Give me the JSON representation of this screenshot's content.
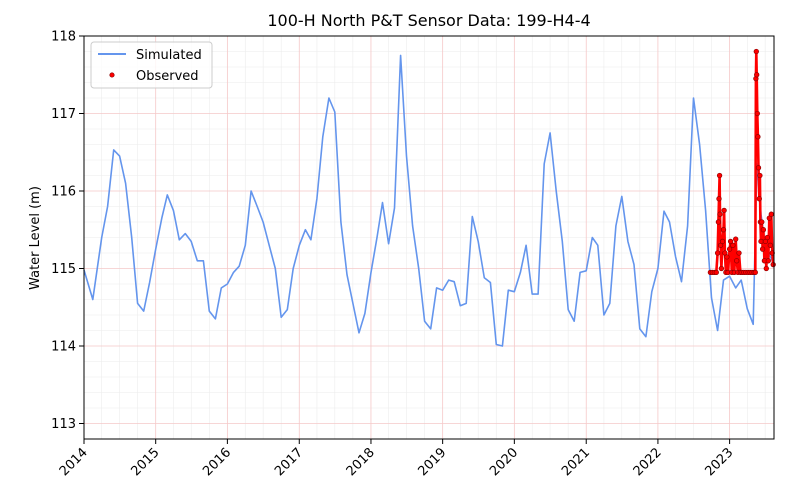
{
  "chart_data": {
    "type": "line",
    "title": "100-H North P&T Sensor Data: 199-H4-4",
    "xlabel": "",
    "ylabel": "Water Level (m)",
    "xlim": [
      "2014-01-01",
      "2023-08-15"
    ],
    "ylim": [
      112.8,
      118.0
    ],
    "x_ticks": [
      "2014",
      "2015",
      "2016",
      "2017",
      "2018",
      "2019",
      "2020",
      "2021",
      "2022",
      "2023"
    ],
    "y_ticks": [
      113,
      114,
      115,
      116,
      117,
      118
    ],
    "grid": true,
    "legend_position": "top-left",
    "series": [
      {
        "name": "Simulated",
        "style": "line",
        "color": "#6495ed",
        "points": [
          [
            "2014-01-01",
            114.98
          ],
          [
            "2014-02-15",
            114.6
          ],
          [
            "2014-04-01",
            115.4
          ],
          [
            "2014-05-01",
            115.8
          ],
          [
            "2014-06-01",
            116.53
          ],
          [
            "2014-07-01",
            116.45
          ],
          [
            "2014-08-01",
            116.1
          ],
          [
            "2014-09-01",
            115.4
          ],
          [
            "2014-10-01",
            114.55
          ],
          [
            "2014-11-01",
            114.45
          ],
          [
            "2014-12-01",
            114.82
          ],
          [
            "2015-01-01",
            115.25
          ],
          [
            "2015-02-01",
            115.65
          ],
          [
            "2015-03-01",
            115.95
          ],
          [
            "2015-04-01",
            115.75
          ],
          [
            "2015-05-01",
            115.37
          ],
          [
            "2015-06-01",
            115.45
          ],
          [
            "2015-07-01",
            115.35
          ],
          [
            "2015-08-01",
            115.1
          ],
          [
            "2015-09-01",
            115.1
          ],
          [
            "2015-10-01",
            114.45
          ],
          [
            "2015-11-01",
            114.35
          ],
          [
            "2015-12-01",
            114.75
          ],
          [
            "2016-01-01",
            114.8
          ],
          [
            "2016-02-01",
            114.95
          ],
          [
            "2016-03-01",
            115.03
          ],
          [
            "2016-04-01",
            115.3
          ],
          [
            "2016-05-01",
            116.0
          ],
          [
            "2016-06-01",
            115.8
          ],
          [
            "2016-07-01",
            115.6
          ],
          [
            "2016-08-01",
            115.3
          ],
          [
            "2016-09-01",
            115.0
          ],
          [
            "2016-10-01",
            114.37
          ],
          [
            "2016-11-01",
            114.47
          ],
          [
            "2016-12-01",
            115.0
          ],
          [
            "2017-01-01",
            115.3
          ],
          [
            "2017-02-01",
            115.5
          ],
          [
            "2017-03-01",
            115.37
          ],
          [
            "2017-04-01",
            115.9
          ],
          [
            "2017-05-01",
            116.7
          ],
          [
            "2017-06-01",
            117.2
          ],
          [
            "2017-07-01",
            117.02
          ],
          [
            "2017-08-01",
            115.6
          ],
          [
            "2017-09-01",
            114.92
          ],
          [
            "2017-10-01",
            114.55
          ],
          [
            "2017-11-01",
            114.17
          ],
          [
            "2017-12-01",
            114.42
          ],
          [
            "2018-01-01",
            114.95
          ],
          [
            "2018-02-01",
            115.4
          ],
          [
            "2018-03-01",
            115.85
          ],
          [
            "2018-04-01",
            115.32
          ],
          [
            "2018-05-01",
            115.78
          ],
          [
            "2018-06-01",
            117.75
          ],
          [
            "2018-07-01",
            116.45
          ],
          [
            "2018-08-01",
            115.55
          ],
          [
            "2018-09-01",
            115.0
          ],
          [
            "2018-10-01",
            114.32
          ],
          [
            "2018-11-01",
            114.22
          ],
          [
            "2018-12-01",
            114.75
          ],
          [
            "2019-01-01",
            114.72
          ],
          [
            "2019-02-01",
            114.85
          ],
          [
            "2019-03-01",
            114.83
          ],
          [
            "2019-04-01",
            114.52
          ],
          [
            "2019-05-01",
            114.55
          ],
          [
            "2019-06-01",
            115.67
          ],
          [
            "2019-07-01",
            115.35
          ],
          [
            "2019-08-01",
            114.88
          ],
          [
            "2019-09-01",
            114.82
          ],
          [
            "2019-10-01",
            114.02
          ],
          [
            "2019-11-01",
            114.0
          ],
          [
            "2019-12-01",
            114.72
          ],
          [
            "2020-01-01",
            114.7
          ],
          [
            "2020-02-01",
            114.95
          ],
          [
            "2020-03-01",
            115.3
          ],
          [
            "2020-04-01",
            114.67
          ],
          [
            "2020-05-01",
            114.67
          ],
          [
            "2020-06-01",
            116.35
          ],
          [
            "2020-07-01",
            116.75
          ],
          [
            "2020-08-01",
            116.0
          ],
          [
            "2020-09-01",
            115.35
          ],
          [
            "2020-10-01",
            114.47
          ],
          [
            "2020-11-01",
            114.32
          ],
          [
            "2020-12-01",
            114.95
          ],
          [
            "2021-01-01",
            114.97
          ],
          [
            "2021-02-01",
            115.4
          ],
          [
            "2021-03-01",
            115.3
          ],
          [
            "2021-04-01",
            114.4
          ],
          [
            "2021-05-01",
            114.55
          ],
          [
            "2021-06-01",
            115.55
          ],
          [
            "2021-07-01",
            115.93
          ],
          [
            "2021-08-01",
            115.35
          ],
          [
            "2021-09-01",
            115.05
          ],
          [
            "2021-10-01",
            114.22
          ],
          [
            "2021-11-01",
            114.12
          ],
          [
            "2021-12-01",
            114.7
          ],
          [
            "2022-01-01",
            115.0
          ],
          [
            "2022-02-01",
            115.74
          ],
          [
            "2022-03-01",
            115.6
          ],
          [
            "2022-04-01",
            115.15
          ],
          [
            "2022-05-01",
            114.83
          ],
          [
            "2022-06-01",
            115.55
          ],
          [
            "2022-07-01",
            117.2
          ],
          [
            "2022-08-01",
            116.6
          ],
          [
            "2022-09-01",
            115.75
          ],
          [
            "2022-10-01",
            114.62
          ],
          [
            "2022-11-01",
            114.2
          ],
          [
            "2022-12-01",
            114.85
          ],
          [
            "2023-01-01",
            114.9
          ],
          [
            "2023-02-01",
            114.75
          ],
          [
            "2023-03-01",
            114.85
          ],
          [
            "2023-04-01",
            114.48
          ],
          [
            "2023-05-01",
            114.28
          ],
          [
            "2023-05-20",
            116.35
          ],
          [
            "2023-06-10",
            115.7
          ],
          [
            "2023-07-01",
            115.3
          ],
          [
            "2023-08-15",
            115.05
          ]
        ]
      },
      {
        "name": "Observed",
        "style": "scatter",
        "color": "#ff0000",
        "edge_color": "#8b0000",
        "points": [
          [
            "2022-09-25",
            114.95
          ],
          [
            "2022-10-05",
            114.95
          ],
          [
            "2022-10-15",
            114.95
          ],
          [
            "2022-10-25",
            114.95
          ],
          [
            "2022-11-01",
            115.2
          ],
          [
            "2022-11-05",
            115.6
          ],
          [
            "2022-11-08",
            115.9
          ],
          [
            "2022-11-11",
            116.2
          ],
          [
            "2022-11-13",
            115.7
          ],
          [
            "2022-11-16",
            115.3
          ],
          [
            "2022-11-20",
            115.0
          ],
          [
            "2022-11-26",
            115.35
          ],
          [
            "2022-12-01",
            115.5
          ],
          [
            "2022-12-04",
            115.75
          ],
          [
            "2022-12-08",
            115.2
          ],
          [
            "2022-12-13",
            114.95
          ],
          [
            "2022-12-18",
            115.15
          ],
          [
            "2022-12-24",
            114.95
          ],
          [
            "2023-01-01",
            115.25
          ],
          [
            "2023-01-06",
            115.35
          ],
          [
            "2023-01-12",
            114.95
          ],
          [
            "2023-01-18",
            115.3
          ],
          [
            "2023-01-25",
            114.95
          ],
          [
            "2023-02-01",
            115.38
          ],
          [
            "2023-02-06",
            115.1
          ],
          [
            "2023-02-12",
            114.95
          ],
          [
            "2023-02-18",
            115.2
          ],
          [
            "2023-02-25",
            114.95
          ],
          [
            "2023-03-05",
            114.95
          ],
          [
            "2023-03-15",
            114.95
          ],
          [
            "2023-03-25",
            114.95
          ],
          [
            "2023-04-05",
            114.95
          ],
          [
            "2023-04-15",
            114.95
          ],
          [
            "2023-04-25",
            114.95
          ],
          [
            "2023-05-05",
            114.95
          ],
          [
            "2023-05-12",
            114.95
          ],
          [
            "2023-05-15",
            117.45
          ],
          [
            "2023-05-17",
            117.8
          ],
          [
            "2023-05-19",
            117.5
          ],
          [
            "2023-05-22",
            117.0
          ],
          [
            "2023-05-25",
            116.7
          ],
          [
            "2023-05-28",
            116.3
          ],
          [
            "2023-06-01",
            115.9
          ],
          [
            "2023-06-04",
            116.2
          ],
          [
            "2023-06-07",
            115.6
          ],
          [
            "2023-06-10",
            115.35
          ],
          [
            "2023-06-14",
            115.6
          ],
          [
            "2023-06-18",
            115.25
          ],
          [
            "2023-06-22",
            115.5
          ],
          [
            "2023-06-27",
            115.1
          ],
          [
            "2023-07-02",
            115.35
          ],
          [
            "2023-07-07",
            115.0
          ],
          [
            "2023-07-12",
            115.4
          ],
          [
            "2023-07-17",
            115.1
          ],
          [
            "2023-07-22",
            115.65
          ],
          [
            "2023-07-27",
            115.3
          ],
          [
            "2023-08-01",
            115.7
          ],
          [
            "2023-08-06",
            115.2
          ],
          [
            "2023-08-11",
            115.05
          ]
        ]
      }
    ]
  }
}
